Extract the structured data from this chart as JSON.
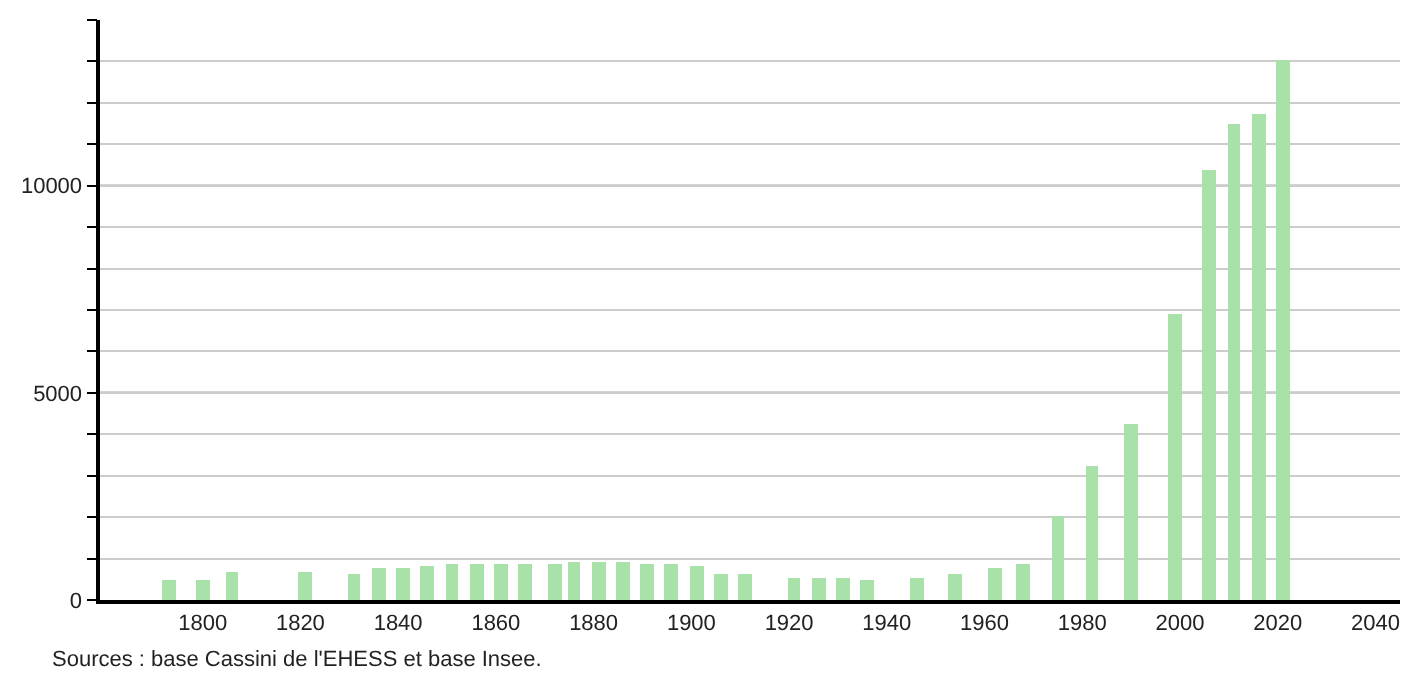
{
  "chart_data": {
    "type": "bar",
    "x": [
      1793,
      1800,
      1806,
      1821,
      1831,
      1836,
      1841,
      1846,
      1851,
      1856,
      1861,
      1866,
      1872,
      1876,
      1881,
      1886,
      1891,
      1896,
      1901,
      1906,
      1911,
      1921,
      1926,
      1931,
      1936,
      1946,
      1954,
      1962,
      1968,
      1975,
      1982,
      1990,
      1999,
      2006,
      2011,
      2016,
      2021
    ],
    "values": [
      500,
      500,
      670,
      670,
      630,
      750,
      750,
      820,
      870,
      870,
      870,
      870,
      870,
      900,
      900,
      900,
      870,
      870,
      830,
      650,
      650,
      530,
      530,
      530,
      500,
      530,
      630,
      750,
      880,
      2040,
      3240,
      4260,
      6900,
      10400,
      11500,
      11750,
      13050
    ],
    "color": "#a9e2a9",
    "xlim": [
      1779,
      2045
    ],
    "xticks": [
      1800,
      1820,
      1840,
      1860,
      1880,
      1900,
      1920,
      1940,
      1960,
      1980,
      2000,
      2020,
      2040
    ],
    "ylim": [
      0,
      14000
    ],
    "yticks": [
      0,
      {
        "value": 1000,
        "label": null
      },
      {
        "value": 2000,
        "label": null
      },
      {
        "value": 3000,
        "label": null
      },
      {
        "value": 4000,
        "label": null
      },
      5000,
      {
        "value": 6000,
        "label": null
      },
      {
        "value": 7000,
        "label": null
      },
      {
        "value": 8000,
        "label": null
      },
      {
        "value": 9000,
        "label": null
      },
      10000,
      {
        "value": 11000,
        "label": null
      },
      {
        "value": 12000,
        "label": null
      },
      {
        "value": 13000,
        "label": null
      },
      {
        "value": 14000,
        "label": null
      }
    ],
    "grid": "y",
    "annotations": [
      "Sources : base Cassini de l'EHESS et base Insee."
    ]
  }
}
